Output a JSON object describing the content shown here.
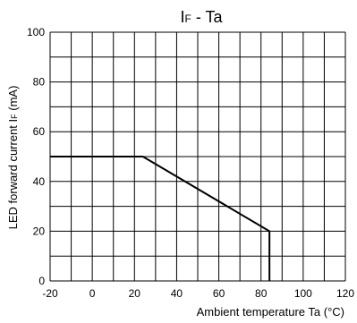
{
  "chart_data": {
    "type": "line",
    "title": "I",
    "title_subscript": "F",
    "title_suffix": " - Ta",
    "xlabel": "Ambient temperature Ta (°C)",
    "ylabel_main": "LED forward current I",
    "ylabel_sub": "F",
    "ylabel_unit": " (mA)",
    "xlim": [
      -20,
      120
    ],
    "ylim": [
      0,
      100
    ],
    "x_grid_step": 10,
    "y_grid_step": 10,
    "x_ticks": [
      -20,
      0,
      20,
      40,
      60,
      80,
      100,
      120
    ],
    "y_ticks": [
      0,
      20,
      40,
      60,
      80,
      100
    ],
    "x_tick_labels": [
      "-20",
      "0",
      "20",
      "40",
      "60",
      "80",
      "100",
      "120"
    ],
    "y_tick_labels": [
      "0",
      "20",
      "40",
      "60",
      "80",
      "100"
    ],
    "grid": true,
    "series": [
      {
        "x": [
          -20,
          24,
          84,
          84
        ],
        "y": [
          50,
          50,
          20,
          0
        ]
      }
    ]
  }
}
